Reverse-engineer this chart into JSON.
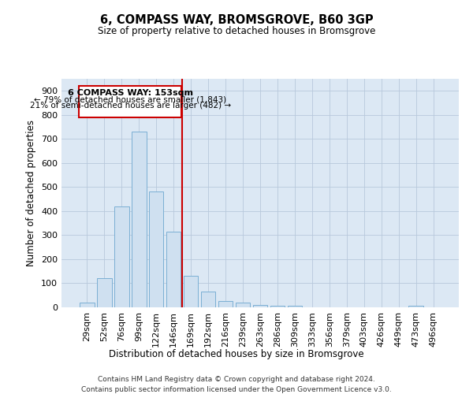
{
  "title": "6, COMPASS WAY, BROMSGROVE, B60 3GP",
  "subtitle": "Size of property relative to detached houses in Bromsgrove",
  "xlabel": "Distribution of detached houses by size in Bromsgrove",
  "ylabel": "Number of detached properties",
  "bar_color": "#cfe0f0",
  "bar_edge_color": "#7bafd4",
  "grid_color": "#b8c8dc",
  "bg_color": "#dce8f4",
  "vline_color": "#cc0000",
  "vline_x": 5.5,
  "annotation_title": "6 COMPASS WAY: 153sqm",
  "annotation_line1": "← 79% of detached houses are smaller (1,843)",
  "annotation_line2": "21% of semi-detached houses are larger (482) →",
  "annotation_box_color": "#ffffff",
  "annotation_box_edge": "#cc0000",
  "categories": [
    "29sqm",
    "52sqm",
    "76sqm",
    "99sqm",
    "122sqm",
    "146sqm",
    "169sqm",
    "192sqm",
    "216sqm",
    "239sqm",
    "263sqm",
    "286sqm",
    "309sqm",
    "333sqm",
    "356sqm",
    "379sqm",
    "403sqm",
    "426sqm",
    "449sqm",
    "473sqm",
    "496sqm"
  ],
  "values": [
    20,
    120,
    420,
    730,
    480,
    315,
    130,
    65,
    25,
    20,
    10,
    5,
    5,
    0,
    0,
    0,
    0,
    0,
    0,
    8,
    0
  ],
  "ylim": [
    0,
    950
  ],
  "yticks": [
    0,
    100,
    200,
    300,
    400,
    500,
    600,
    700,
    800,
    900
  ],
  "footer1": "Contains HM Land Registry data © Crown copyright and database right 2024.",
  "footer2": "Contains public sector information licensed under the Open Government Licence v3.0."
}
